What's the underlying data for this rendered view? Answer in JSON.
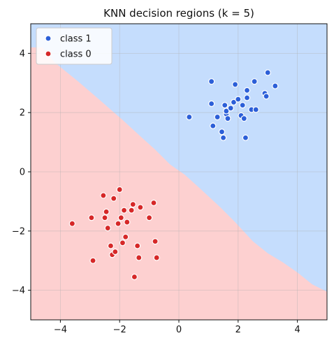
{
  "chart_data": {
    "type": "scatter",
    "title": "KNN decision regions (k = 5)",
    "xlabel": "",
    "ylabel": "",
    "xlim": [
      -5,
      5
    ],
    "ylim": [
      -5,
      5
    ],
    "xticks": [
      -4,
      -2,
      0,
      2,
      4
    ],
    "yticks": [
      -4,
      -2,
      0,
      2,
      4
    ],
    "grid": true,
    "legend_position": "top-left",
    "region_colors": {
      "class 1": "#c5ddfd",
      "class 0": "#fdd0d0"
    },
    "decision_boundary": {
      "x": [
        -5,
        -4.6,
        -4.2,
        -3.4,
        -2.7,
        -2.3,
        -1.9,
        -1.3,
        -0.8,
        -0.3,
        0.2,
        0.7,
        1.4,
        1.9,
        2.5,
        3.0,
        3.5,
        4.0,
        4.5,
        5
      ],
      "y": [
        4.2,
        4.2,
        3.7,
        3.05,
        2.45,
        2.1,
        1.75,
        1.2,
        0.75,
        0.25,
        -0.1,
        -0.55,
        -1.2,
        -1.7,
        -2.35,
        -2.75,
        -3.05,
        -3.4,
        -3.8,
        -4.05
      ]
    },
    "series": [
      {
        "name": "class 1",
        "color": "#2c5fd8",
        "x": [
          0.35,
          1.1,
          1.1,
          1.15,
          1.3,
          1.45,
          1.5,
          1.55,
          1.6,
          1.6,
          1.65,
          1.75,
          1.85,
          1.9,
          2.0,
          2.1,
          2.15,
          2.2,
          2.25,
          2.3,
          2.3,
          2.45,
          2.55,
          2.6,
          2.9,
          2.95,
          3.0,
          3.25
        ],
        "y": [
          1.85,
          3.05,
          2.3,
          1.55,
          1.85,
          1.35,
          1.15,
          2.25,
          1.95,
          2.05,
          1.8,
          2.15,
          2.35,
          2.95,
          2.45,
          1.9,
          2.25,
          1.8,
          1.15,
          2.5,
          2.75,
          2.1,
          3.05,
          2.1,
          2.65,
          2.55,
          3.35,
          2.9
        ]
      },
      {
        "name": "class 0",
        "color": "#d62828",
        "x": [
          -3.6,
          -2.95,
          -2.9,
          -2.55,
          -2.5,
          -2.45,
          -2.4,
          -2.3,
          -2.25,
          -2.2,
          -2.15,
          -2.05,
          -2.0,
          -1.95,
          -1.9,
          -1.85,
          -1.8,
          -1.75,
          -1.6,
          -1.55,
          -1.5,
          -1.4,
          -1.35,
          -1.3,
          -1.0,
          -0.85,
          -0.8,
          -0.75
        ],
        "y": [
          -1.75,
          -1.55,
          -3.0,
          -0.8,
          -1.55,
          -1.35,
          -1.9,
          -2.5,
          -2.8,
          -0.9,
          -2.7,
          -1.75,
          -0.6,
          -1.55,
          -2.4,
          -1.3,
          -2.2,
          -1.7,
          -1.3,
          -1.1,
          -3.55,
          -2.5,
          -2.9,
          -1.2,
          -1.55,
          -1.05,
          -2.35,
          -2.9
        ]
      }
    ]
  }
}
